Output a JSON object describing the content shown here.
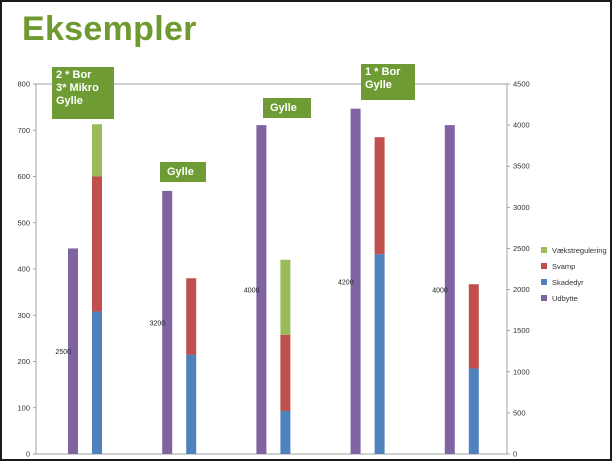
{
  "slide": {
    "title": "Eksempler"
  },
  "annotations": [
    {
      "text": "2 * Bor\n3* Mikro\nGylle"
    },
    {
      "text": "Gylle"
    },
    {
      "text": "Gylle"
    },
    {
      "text": "1 * Bor\nGylle"
    }
  ],
  "colors": {
    "title": "#6f9a2f",
    "annotation_bg": "#6e9b33",
    "Vækstregulering": "#9bbb59",
    "Svamp": "#c0504d",
    "Skadedyr": "#4f81bd",
    "Udbytte": "#8064a2"
  },
  "chart_data": {
    "type": "bar",
    "groups": 5,
    "left_axis": {
      "ylim": [
        0,
        800
      ],
      "ticks": [
        "0",
        "100",
        "200",
        "300",
        "400",
        "500",
        "600",
        "700",
        "800"
      ]
    },
    "right_axis": {
      "ylim": [
        0,
        4500
      ],
      "ticks": [
        "0",
        "500",
        "1000",
        "1500",
        "2000",
        "2500",
        "3000",
        "3500",
        "4000",
        "4500"
      ]
    },
    "udbytte": {
      "name": "Udbytte",
      "axis": "right",
      "values": [
        2500,
        3200,
        4000,
        4200,
        4000
      ],
      "data_labels": [
        "2500",
        "3200",
        "4000",
        "4200",
        "4000"
      ]
    },
    "stacked": {
      "axis": "left",
      "series": [
        {
          "name": "Skadedyr",
          "values": [
            308,
            215,
            93,
            432,
            185
          ]
        },
        {
          "name": "Svamp",
          "values": [
            292,
            165,
            165,
            253,
            182
          ]
        },
        {
          "name": "Vækstregulering",
          "values": [
            113,
            0,
            162,
            0,
            0
          ]
        }
      ]
    },
    "legend": {
      "position": "right",
      "items": [
        "Vækstregulering",
        "Svamp",
        "Skadedyr",
        "Udbytte"
      ]
    }
  }
}
